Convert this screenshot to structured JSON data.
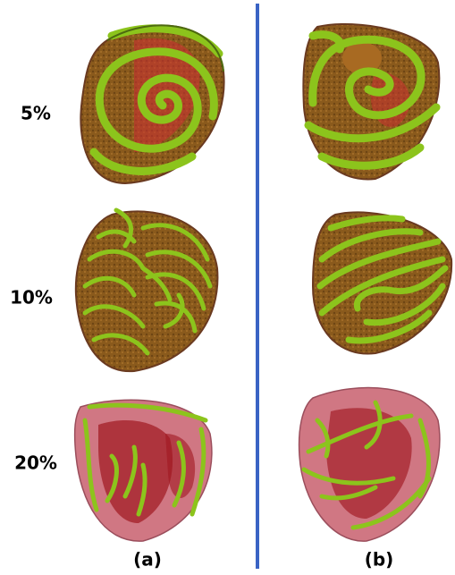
{
  "row_labels": [
    "5%",
    "10%",
    "20%"
  ],
  "column_labels": [
    "(a)",
    "(b)"
  ]
}
